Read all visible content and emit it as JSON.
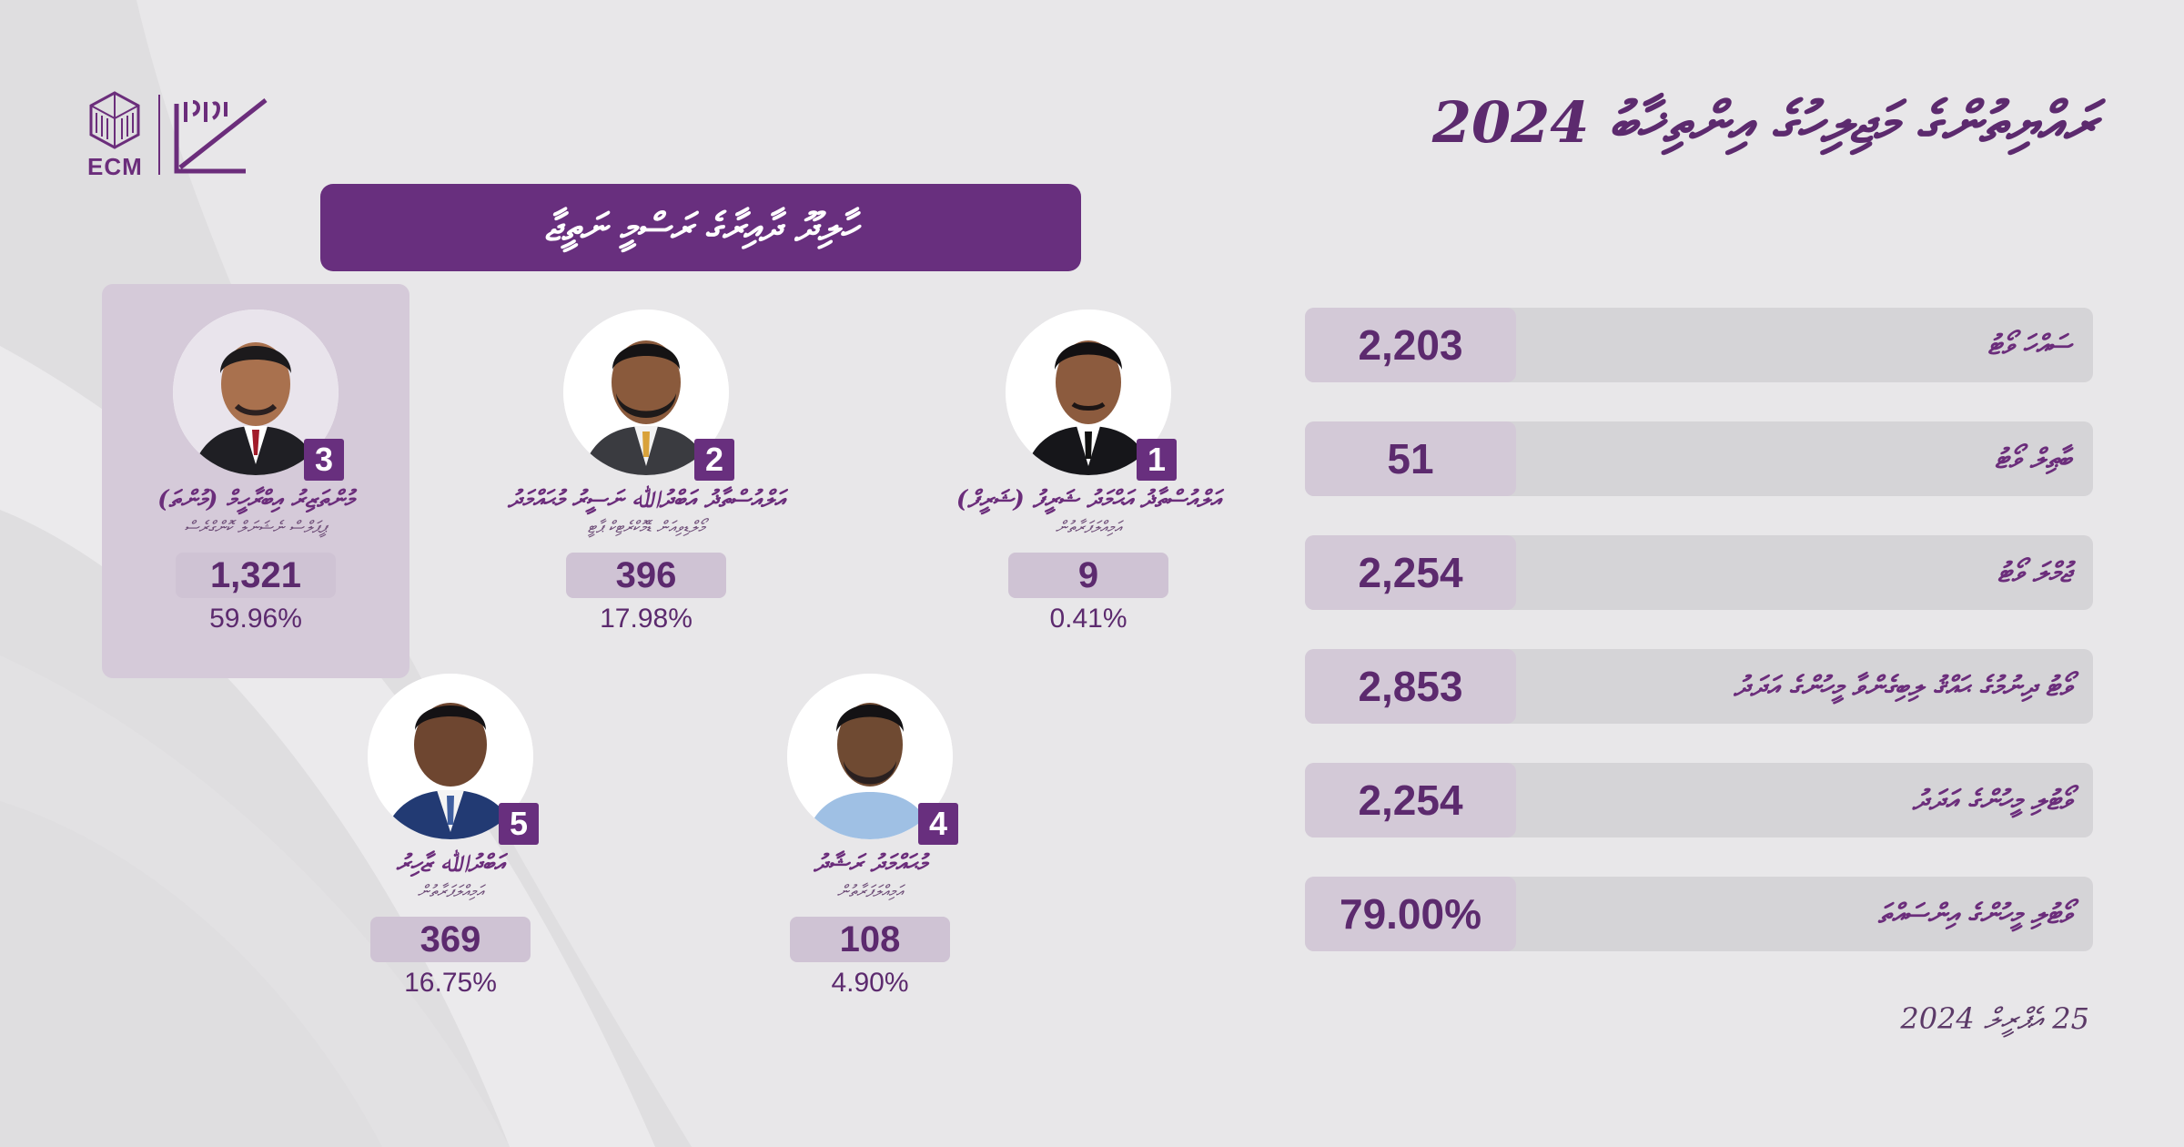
{
  "header": {
    "title": "ރައްޔިތުންގެ މަޖިލިހުގެ އިންތިޚާބު 2024",
    "logo_text": "ECM",
    "banner": "ހާލިދޫ ދާއިރާގެ ރަސްމީ ނަތީޖާ"
  },
  "candidates": [
    {
      "number": "3",
      "name": "މުންތަޒިރު އިބްރާހީމް (މުންތަ)",
      "party": "ޕީޕަލްސް ނެޝަނަލް ކޮންގްރެސް",
      "votes": "1,321",
      "percent": "59.96%",
      "winner": true
    },
    {
      "number": "2",
      "name": "އަލްއުސްތާޛު އަބްދުﷲ ނަސީރު މުޙައްމަދު",
      "party": "މޯލްޑިވިއަން ޑެމޮކްރެޓިކް ޕާޓީ",
      "votes": "396",
      "percent": "17.98%",
      "winner": false
    },
    {
      "number": "1",
      "name": "އަލްއުސްތާޛު އަޙްމަދު ޝަރީފު (ޝަރީފް)",
      "party": "އަމިއްލަފަރާތުން",
      "votes": "9",
      "percent": "0.41%",
      "winner": false
    },
    {
      "number": "5",
      "name": "އަބްދުﷲ ޒާހިރު",
      "party": "އަމިއްލަފަރާތުން",
      "votes": "369",
      "percent": "16.75%",
      "winner": false
    },
    {
      "number": "4",
      "name": "މުޙައްމަދު ރަޝާދު",
      "party": "އަމިއްލަފަރާތުން",
      "votes": "108",
      "percent": "4.90%",
      "winner": false
    }
  ],
  "stats": [
    {
      "label": "ސައްހަ ވޯޓު",
      "value": "2,203"
    },
    {
      "label": "ބާޠިލް ވޯޓު",
      "value": "51"
    },
    {
      "label": "ޖުމްލަ ވޯޓު",
      "value": "2,254"
    },
    {
      "label": "ވޯޓު ދިނުމުގެ ޙައްޤު ލިބިގެންވާ މީހުންގެ އަދަދު",
      "value": "2,853"
    },
    {
      "label": "ވޯޓުލި މީހުންގެ އަދަދު",
      "value": "2,254"
    },
    {
      "label": "ވޯޓުލި މީހުންގެ އިންސައްތަ",
      "value": "79.00%"
    }
  ],
  "footer": {
    "date": "25 އެޕްރީލް 2024"
  },
  "colors": {
    "primary": "#682f7e",
    "background": "#e8e7e9",
    "value_box": "#d3c9d7",
    "stat_bar": "#d5d4d7"
  }
}
